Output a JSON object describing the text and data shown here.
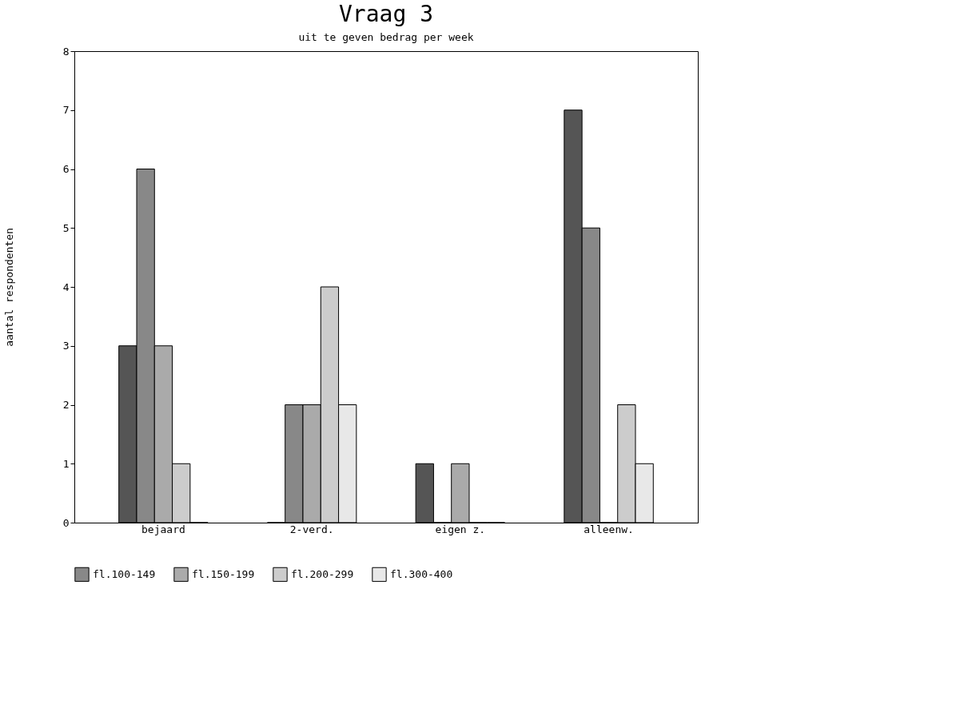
{
  "chart_data": {
    "type": "bar",
    "title": "Vraag 3",
    "subtitle": "uit te geven bedrag per week",
    "ylabel": "aantal respondenten",
    "categories": [
      "bejaard",
      "2-verd.",
      "eigen z.",
      "alleenw."
    ],
    "series": [
      {
        "color": "#555555",
        "values": [
          3,
          0,
          1,
          7
        ]
      },
      {
        "name": "fl.100-149",
        "color": "#888888",
        "values": [
          6,
          2,
          0,
          5
        ]
      },
      {
        "name": "fl.150-199",
        "color": "#aaaaaa",
        "values": [
          3,
          2,
          1,
          0
        ]
      },
      {
        "name": "fl.200-299",
        "color": "#cccccc",
        "values": [
          1,
          4,
          0,
          2
        ]
      },
      {
        "name": "fl.300-400",
        "color": "#e8e8e8",
        "values": [
          0,
          2,
          0,
          1
        ]
      }
    ],
    "ylim": [
      0,
      8
    ],
    "yticks": [
      0,
      1,
      2,
      3,
      4,
      5,
      6,
      7,
      8
    ],
    "grid": false,
    "legend": "bottom"
  }
}
